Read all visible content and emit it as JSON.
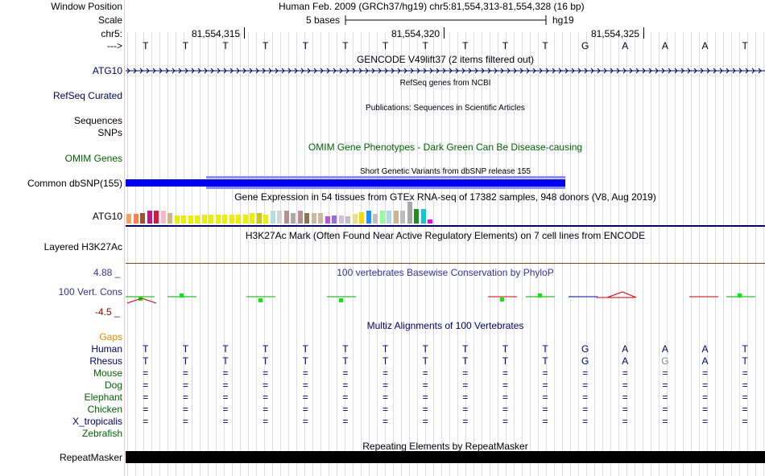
{
  "header": {
    "window_position_label": "Window Position",
    "window_position_value": "Human Feb. 2009 (GRCh37/hg19)   chr5:81,554,313-81,554,328 (16 bp)",
    "scale_label": "Scale",
    "scale_text": "5 bases",
    "assembly": "hg19",
    "chrom_label": "chr5:",
    "ticks": [
      "81,554,315",
      "81,554,320",
      "81,554,325"
    ],
    "strand_label": "--->",
    "bases": [
      "T",
      "T",
      "T",
      "T",
      "T",
      "T",
      "T",
      "T",
      "T",
      "T",
      "T",
      "G",
      "A",
      "A",
      "A",
      "T"
    ]
  },
  "tracks": {
    "gencode": {
      "title": "GENCODE V49lift37 (2 items filtered out)",
      "label": "ATG10"
    },
    "refseq": {
      "title": "RefSeq genes from NCBI",
      "label": "RefSeq Curated"
    },
    "publications": {
      "title": "Publications: Sequences in Scientific Articles",
      "label1": "Sequences",
      "label2": "SNPs"
    },
    "omim": {
      "title": "OMIM Gene Phenotypes - Dark Green Can Be Disease-causing",
      "label": "OMIM Genes"
    },
    "dbsnp": {
      "title": "Short Genetic Variants from dbSNP release 155",
      "label": "Common dbSNP(155)"
    },
    "gtex": {
      "title": "Gene Expression in 54 tissues from GTEx RNA-seq of 17382 samples, 948 donors (V8, Aug 2019)",
      "label": "ATG10"
    },
    "h3k27ac": {
      "title": "H3K27Ac Mark (Often Found Near Active Regulatory Elements) on 7 cell lines from ENCODE",
      "label": "Layered H3K27Ac"
    },
    "phylop": {
      "title": "100 vertebrates Basewise Conservation by PhyloP",
      "label": "100 Vert. Cons",
      "max": "4.88 _",
      "min": "-4.5 _"
    },
    "multiz": {
      "title": "Multiz Alignments of 100 Vertebrates",
      "gaps_label": "Gaps"
    },
    "repeatmasker": {
      "title": "Repeating Elements by RepeatMasker",
      "label": "RepeatMasker"
    }
  },
  "species": [
    {
      "name": "Human",
      "row": [
        "T",
        "T",
        "T",
        "T",
        "T",
        "T",
        "T",
        "T",
        "T",
        "T",
        "T",
        "G",
        "A",
        "A",
        "A",
        "T"
      ]
    },
    {
      "name": "Rhesus",
      "row": [
        "T",
        "T",
        "T",
        "T",
        "T",
        "T",
        "T",
        "T",
        "T",
        "T",
        "T",
        "G",
        "A",
        "G",
        "A",
        "T"
      ]
    },
    {
      "name": "Mouse",
      "row": [
        "=",
        "=",
        "=",
        "=",
        "=",
        "=",
        "=",
        "=",
        "=",
        "=",
        "=",
        "=",
        "=",
        "=",
        "=",
        "="
      ]
    },
    {
      "name": "Dog",
      "row": [
        "=",
        "=",
        "=",
        "=",
        "=",
        "=",
        "=",
        "=",
        "=",
        "=",
        "=",
        "=",
        "=",
        "=",
        "=",
        "="
      ]
    },
    {
      "name": "Elephant",
      "row": [
        "=",
        "=",
        "=",
        "=",
        "=",
        "=",
        "=",
        "=",
        "=",
        "=",
        "=",
        "=",
        "=",
        "=",
        "=",
        "="
      ]
    },
    {
      "name": "Chicken",
      "row": [
        "=",
        "=",
        "=",
        "=",
        "=",
        "=",
        "=",
        "=",
        "=",
        "=",
        "=",
        "=",
        "=",
        "=",
        "=",
        "="
      ]
    },
    {
      "name": "X_tropicalis",
      "row": [
        "=",
        "=",
        "=",
        "=",
        "=",
        "=",
        "=",
        "=",
        "=",
        "=",
        "=",
        "=",
        "=",
        "=",
        "=",
        "="
      ]
    },
    {
      "name": "Zebrafish",
      "row": []
    }
  ],
  "colors": {
    "navy": "#000066",
    "green": "#006400",
    "orange": "#e68a00",
    "blue": "#0000ee",
    "lightblue": "#8c8cff",
    "phylop_blue": "#333399",
    "mismatch_gray": "#888888"
  }
}
